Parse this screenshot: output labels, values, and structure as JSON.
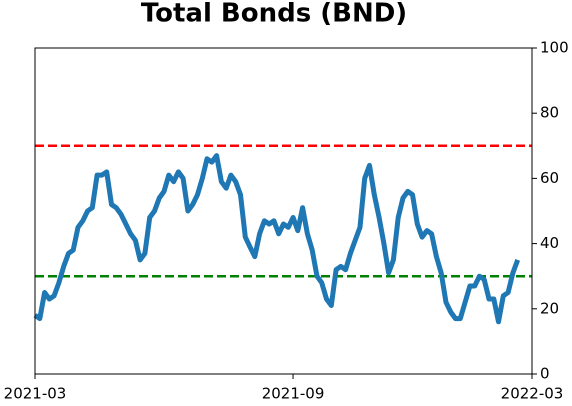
{
  "chart_data": {
    "type": "line",
    "title": "Total Bonds (BND)",
    "categories": [
      "2021-03",
      null,
      null,
      null,
      null,
      null,
      null,
      null,
      null,
      null,
      null,
      null,
      null,
      null,
      null,
      null,
      null,
      null,
      null,
      null,
      null,
      null,
      null,
      null,
      null,
      null,
      null,
      null,
      null,
      null,
      null,
      null,
      null,
      null,
      null,
      null,
      null,
      null,
      null,
      null,
      null,
      null,
      null,
      null,
      null,
      null,
      null,
      null,
      null,
      null,
      null,
      null,
      null,
      null,
      "2021-09",
      null,
      null,
      null,
      null,
      null,
      null,
      null,
      null,
      null,
      null,
      null,
      null,
      null,
      null,
      null,
      null,
      null,
      null,
      null,
      null,
      null,
      null,
      null,
      null,
      null,
      null,
      null,
      null,
      null,
      null,
      null,
      null,
      null,
      null,
      null,
      null,
      null,
      null,
      null,
      null,
      null,
      null,
      null,
      null,
      null,
      null,
      null,
      null,
      null,
      "2022-03"
    ],
    "series": [
      {
        "color": "#1f77b4",
        "values": [
          18,
          17,
          25,
          23,
          24,
          28,
          33,
          37,
          38,
          45,
          47,
          50,
          51,
          61,
          61,
          62,
          52,
          51,
          49,
          46,
          43,
          41,
          35,
          37,
          48,
          50,
          54,
          56,
          61,
          59,
          62,
          60,
          50,
          52,
          55,
          60,
          66,
          65,
          67,
          59,
          57,
          61,
          59,
          55,
          42,
          39,
          36,
          43,
          47,
          46,
          47,
          43,
          46,
          45,
          48,
          44,
          51,
          43,
          38,
          30,
          28,
          23,
          21,
          32,
          33,
          32,
          37,
          41,
          45,
          60,
          64,
          55,
          48,
          40,
          31,
          35,
          48,
          54,
          56,
          55,
          46,
          42,
          44,
          43,
          36,
          31,
          22,
          19,
          17,
          17,
          22,
          27,
          27,
          30,
          29,
          23,
          23,
          16,
          24,
          25,
          31,
          35,
          null,
          null,
          null
        ]
      }
    ],
    "ylim": [
      0,
      100
    ],
    "yticks": [
      0,
      20,
      40,
      60,
      80,
      100
    ],
    "y_axis_side": "right",
    "reference_lines": [
      {
        "value": 70,
        "color": "#ff0000"
      },
      {
        "value": 30,
        "color": "#008000"
      }
    ]
  }
}
